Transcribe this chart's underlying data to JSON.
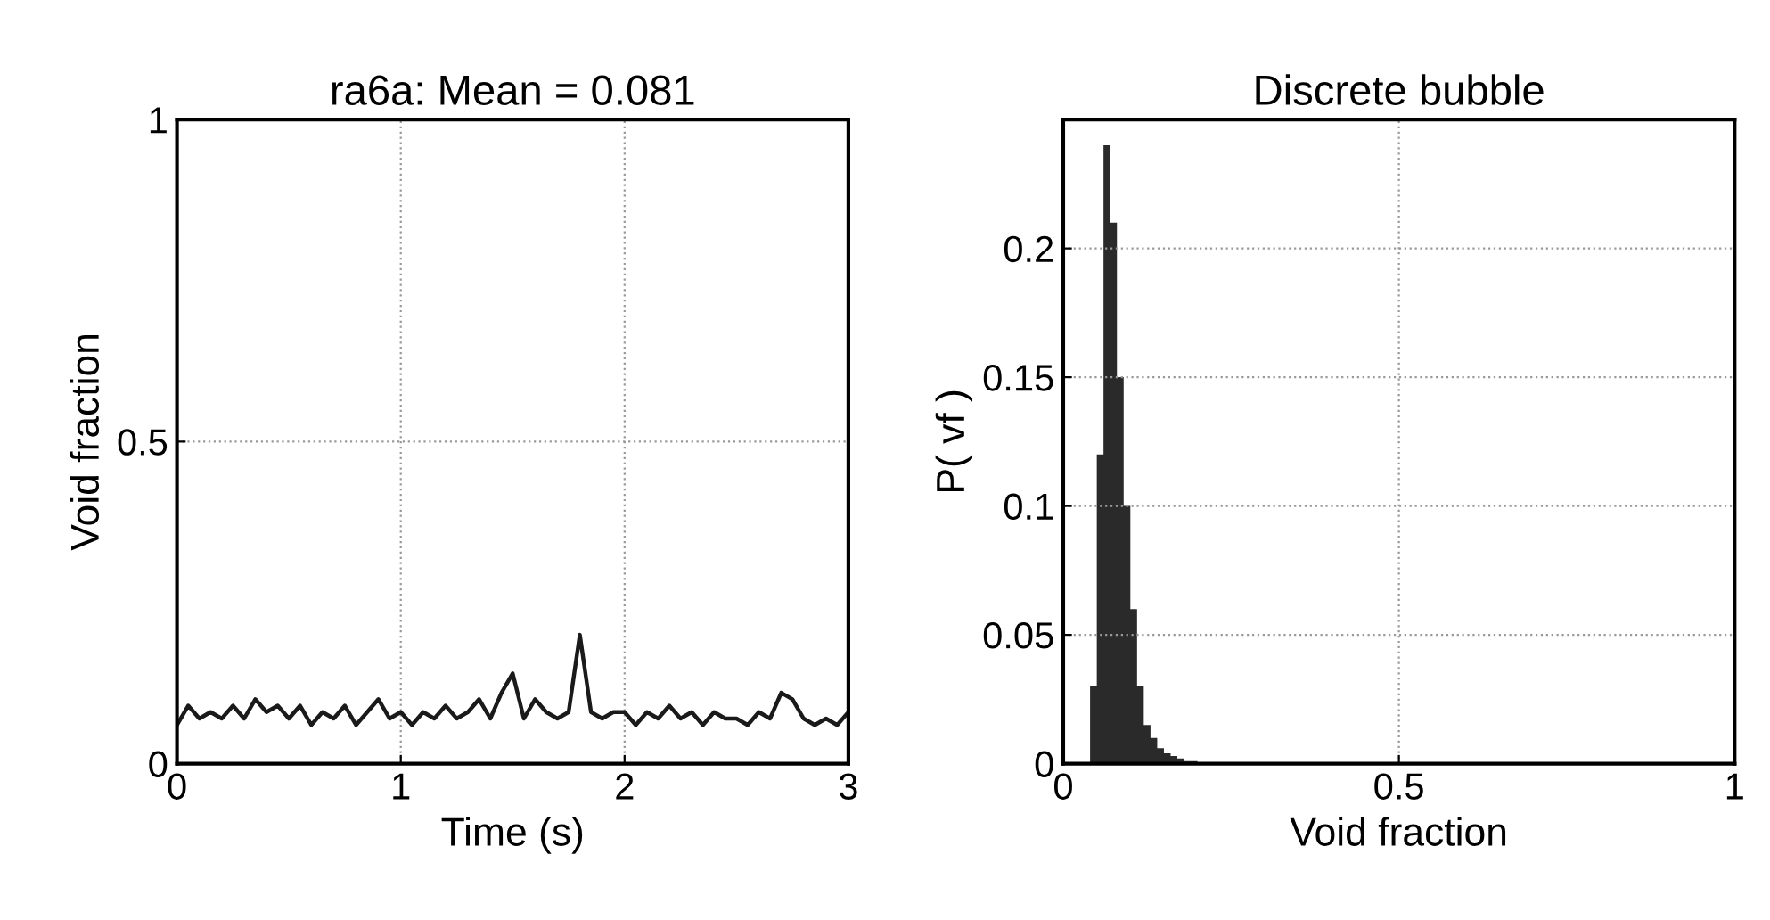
{
  "chart_data": [
    {
      "type": "line",
      "title": "ra6a: Mean = 0.081",
      "xlabel": "Time (s)",
      "ylabel": "Void fraction",
      "xlim": [
        0,
        3
      ],
      "ylim": [
        0,
        1
      ],
      "xticks": [
        0,
        1,
        2,
        3
      ],
      "yticks": [
        0,
        0.5,
        1
      ],
      "grid": true,
      "line_style": "solid",
      "marker": "none",
      "series": [
        {
          "color": "#1a1a1a",
          "x": [
            0,
            0.05,
            0.1,
            0.15,
            0.2,
            0.25,
            0.3,
            0.35,
            0.4,
            0.45,
            0.5,
            0.55,
            0.6,
            0.65,
            0.7,
            0.75,
            0.8,
            0.85,
            0.9,
            0.95,
            1.0,
            1.05,
            1.1,
            1.15,
            1.2,
            1.25,
            1.3,
            1.35,
            1.4,
            1.45,
            1.5,
            1.55,
            1.6,
            1.65,
            1.7,
            1.75,
            1.8,
            1.85,
            1.9,
            1.95,
            2.0,
            2.05,
            2.1,
            2.15,
            2.2,
            2.25,
            2.3,
            2.35,
            2.4,
            2.45,
            2.5,
            2.55,
            2.6,
            2.65,
            2.7,
            2.75,
            2.8,
            2.85,
            2.9,
            2.95,
            3.0
          ],
          "values": [
            0.06,
            0.09,
            0.07,
            0.08,
            0.07,
            0.09,
            0.07,
            0.1,
            0.08,
            0.09,
            0.07,
            0.09,
            0.06,
            0.08,
            0.07,
            0.09,
            0.06,
            0.08,
            0.1,
            0.07,
            0.08,
            0.06,
            0.08,
            0.07,
            0.09,
            0.07,
            0.08,
            0.1,
            0.07,
            0.11,
            0.14,
            0.07,
            0.1,
            0.08,
            0.07,
            0.08,
            0.2,
            0.08,
            0.07,
            0.08,
            0.08,
            0.06,
            0.08,
            0.07,
            0.09,
            0.07,
            0.08,
            0.06,
            0.08,
            0.07,
            0.07,
            0.06,
            0.08,
            0.07,
            0.11,
            0.1,
            0.07,
            0.06,
            0.07,
            0.06,
            0.08
          ]
        }
      ]
    },
    {
      "type": "histogram",
      "title": "Discrete bubble",
      "xlabel": "Void fraction",
      "ylabel": "P( vf )",
      "xlim": [
        0,
        1
      ],
      "ylim": [
        0,
        0.25
      ],
      "xticks": [
        0,
        0.5,
        1
      ],
      "yticks": [
        0,
        0.05,
        0.1,
        0.15,
        0.2
      ],
      "grid": true,
      "bins": [
        0.04,
        0.05,
        0.06,
        0.07,
        0.08,
        0.09,
        0.1,
        0.11,
        0.12,
        0.13,
        0.14,
        0.15,
        0.16,
        0.17,
        0.18,
        0.19,
        0.2
      ],
      "values": [
        0.03,
        0.12,
        0.24,
        0.21,
        0.15,
        0.1,
        0.06,
        0.03,
        0.015,
        0.01,
        0.006,
        0.004,
        0.003,
        0.002,
        0.001,
        0.001
      ],
      "color": "#2a2a2a"
    }
  ]
}
